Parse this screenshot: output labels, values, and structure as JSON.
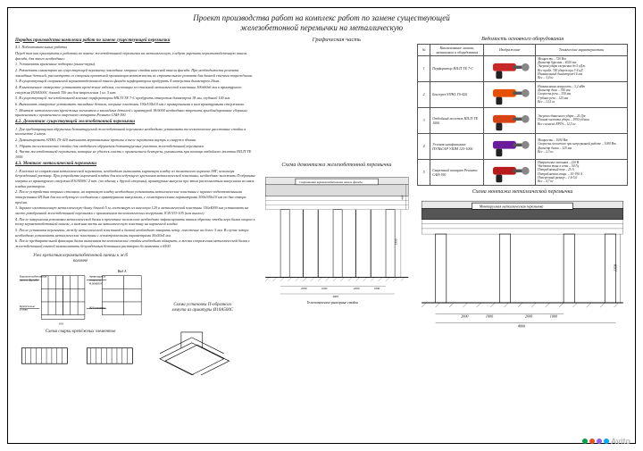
{
  "title_line1": "Проект производства работ на комплекс работ по замене существующей",
  "title_line2": "железобетонной перемычки на металлическую",
  "graphic_part": "Графическая часть",
  "left": {
    "h1": "Порядок производства комплекса работ по замене существующей перемычки",
    "h11": "4.1. Подготовительные работы",
    "p1": "Перед тем как приступить к работам по замене железобетонной перемычки на металлическую, следует укрепить керамзитобетонную панель фасада, для этого необходимо:",
    "li1": "1. Установить временные подпорки (выше-туры).",
    "li2": "2. Разметить симметрию на существующей перемычку закладные опорные стойки навесной панели фасада. При необходимости ремонта закладных деталей, рассмотреть со стороны проектной организации возможность их строительного ремонта для данной степени повреждения.",
    "li3": "3. В существующей сохраняемой керамзитобетонной панели фасада перфоратором пробурить 4 отверстия диаметром 20мм.",
    "li4": "4. В выполненное отверстие установить крепёжные изделия, состоящие из стальной металлической пластины 100х60х6 мм и арматурного стержня Ø20А500С длиной 350 мм для закрепления 1 кг. 5 шт.",
    "li5": "5. В существующей железобетонной колонне перфоратором HILTI TE 7-С пробурить отверстия диаметром 18 мм, глубиной 100 мм.",
    "li6": "6. Выполнить отверстие установить закладные детали, опорные пластины 190х100х10 мм с приваренными к ним арматурными стержнями.",
    "li7": "7. Монтаж металлических крепёжных элементов и закладных деталей с арматурой 18/6000 необходимо закрепить хрисбондирование сборным применением с применением сварочного аппарата Ресанта САИ-190.",
    "h12": "4.2. Демонтаж существующей железобетонной перемычки",
    "p2": "1. Для предотвращения обрушения демонтируемой железобетонной перемычки необходимо установить телескопическое расстояние стойки в количестве 2 штук.",
    "p3": "2. Демонтировать STIHL TS-420 выполнить вертикальные пропилы в теле перемычки внутрь и снаружи здания.",
    "p4": "3. Убрать телескопические стойки для свободного обрушения демонтируемых участков железобетонной перемычки.",
    "p5": "4. Части железобетонной перемычки, которые не удалось снести с применением бензореза, уменьшить при помощи отбойного молотка HILTI TE 1000.",
    "h13": "4.3. Монтаж металлической перемычки",
    "p6": "1. В местах из сопряжения металлической перемычки, необходимо выполнить кирпичную кладку из полнотелого кирпича 1НГ, используя безусадочный раствор. При устройстве кирпичной кладки для последующего крепления металлической пластины, необходимо заложить П-образные хомуты из арматурного стержня Ø10А500С 2 шт. (по одному с другой стороны), арматурные выпуски при этом располагаться выпусками из швов кладки раствором.",
    "p7": "2. После устройства опорных столиков, на кирпичную кладку необходимо установить металлические пластины с заранее подготовленными отверстиями Ø10мм для последующего соединения с арматурными выпусками, с геометрическими параметрами 500х300х10 мм по два створа проёма.",
    "p8": "3. Заранее изготовленную металлическую балку длиной 5 м, состоящую из швеллера 120 и металлической пластины 136х4000 мм установить на место разобранной железобетонной перемычки с применением телескопических погрузчика JCB 533-105 (или аналог).",
    "p9": "4. После завершения установки металлической балки в проектное положение необходимо зафиксировать таким образом, чтобы верх балки опирал в полку керамзитобетонной панели, а нижняя часть на металлическую пластину на кирпичной кладке.",
    "p10": "5. После установки перемычки, между металлической пластиной и балкой необходимо заварить зазор, положение на более 5 мм. В случае зазора необходимо установить металлические пластины с геометрическими параметрами 50х50х4 мм.",
    "p11": "6. После предварительной фиксации балки выполняем телескопические стойки необходимо обварить, а место сопряжения металлической балки с железобетонной плитой замонолитить безусадочным бетонным раствором до момента х 6500.",
    "node_title": "Узел крепления керамзитобетонной панели к ж/б",
    "node_title2": "колонне",
    "weld_title": "Схема сварки крепёжных элементов",
    "hoop_title": "Схема установки П-образного",
    "hoop_title2": "хомута из арматуры Ø10А500С",
    "n_lbl1": "Керамзитобетонная",
    "n_lbl1b": "панель фасада",
    "n_lbl2": "Арматурные",
    "n_lbl2b": "стержни",
    "n_lbl3": "Ø18А600С",
    "n_lbl4": "Ж/б колонна",
    "n_lbl5": "Крепёжные",
    "n_lbl5b": "уголки",
    "n_vida": "Вид А",
    "n_dim100": "100"
  },
  "mid": {
    "title": "Схема демонтажа железобетонной перемычки",
    "lbl_panel": "Сохраняемая керамзитобетонная панель фасада",
    "lbl_stands": "Телескопические распорные стойки",
    "dims": {
      "d2000": "2000",
      "d1000": "1000",
      "d4000": "4000",
      "d1350": "1350",
      "d5000": "5000",
      "d400": "400"
    }
  },
  "right": {
    "eq_title": "Ведомость основного оборудования",
    "headers": {
      "num": "№",
      "name": "Наименование машин, механизмов и оборудования",
      "img": "Изображение",
      "spec": "Технические характеристики"
    },
    "rows": [
      {
        "n": "1",
        "name": "Перфоратор HILTI TE 7-С",
        "spec": "Мощность – 720 Вт\nДиаметр бурения – 4020 мм\nЭнергия удара сверления до 5 кДж\nВес прибл. 740 ударов при 3-4 нД\nНоминальный диаметром-16 мм\nВес – 3,4 кг",
        "color": "#c62828"
      },
      {
        "n": "2",
        "name": "Бензорез STIHL TS-420",
        "spec": "Номинальная мощность – 3,2 кВт\nДиаметр диск – 350 мм\nСкорость реза – 350 мм\nГлубина реза – 125 мм\nВес – 12,5 кг",
        "color": "#e65100"
      },
      {
        "n": "3",
        "name": "Отбойный молоток HILTI TE 1000",
        "spec": "Энергия единичного удара – 26 Дж\nПолная частота удара – 1950 уд/мин\nВес согласно EPTA – 12,5 кг",
        "color": "#d84315"
      },
      {
        "n": "4",
        "name": "Угловая шлифмашина ПУЛЬСАР УШМ 125-1000",
        "spec": "Мощность – 1000 Вт\nСкорость холостого при непрерывной работе – 1000 Вт\nДиаметр диска – 125 мм\nВес – 2,3 кг",
        "color": "#6a1b9a"
      },
      {
        "n": "5",
        "name": "Сварочный аппарат Ресанта САИ-190",
        "spec": "Напряжение питания – 220 В\nЧастота тока в сети – 50 Гц\nПотребляемый ток – 25 А\nПотребляемая мощн. – 10-190 А\nПоперечный размер – 1,6-5,0\nВес – 4,7 кг",
        "color": "#b71c1c"
      }
    ],
    "scheme_title": "Схема монтажа металлической перемычки",
    "lbl_beam": "Монтируемая металлическая перемычка",
    "dims": {
      "d2000": "2000",
      "d1000": "1000",
      "d4000": "4000",
      "d1350": "1350",
      "d400": "400"
    }
  },
  "watermark": "Avito",
  "dot_colors": [
    "#00a046",
    "#f04e23",
    "#965eeb",
    "#0af"
  ]
}
